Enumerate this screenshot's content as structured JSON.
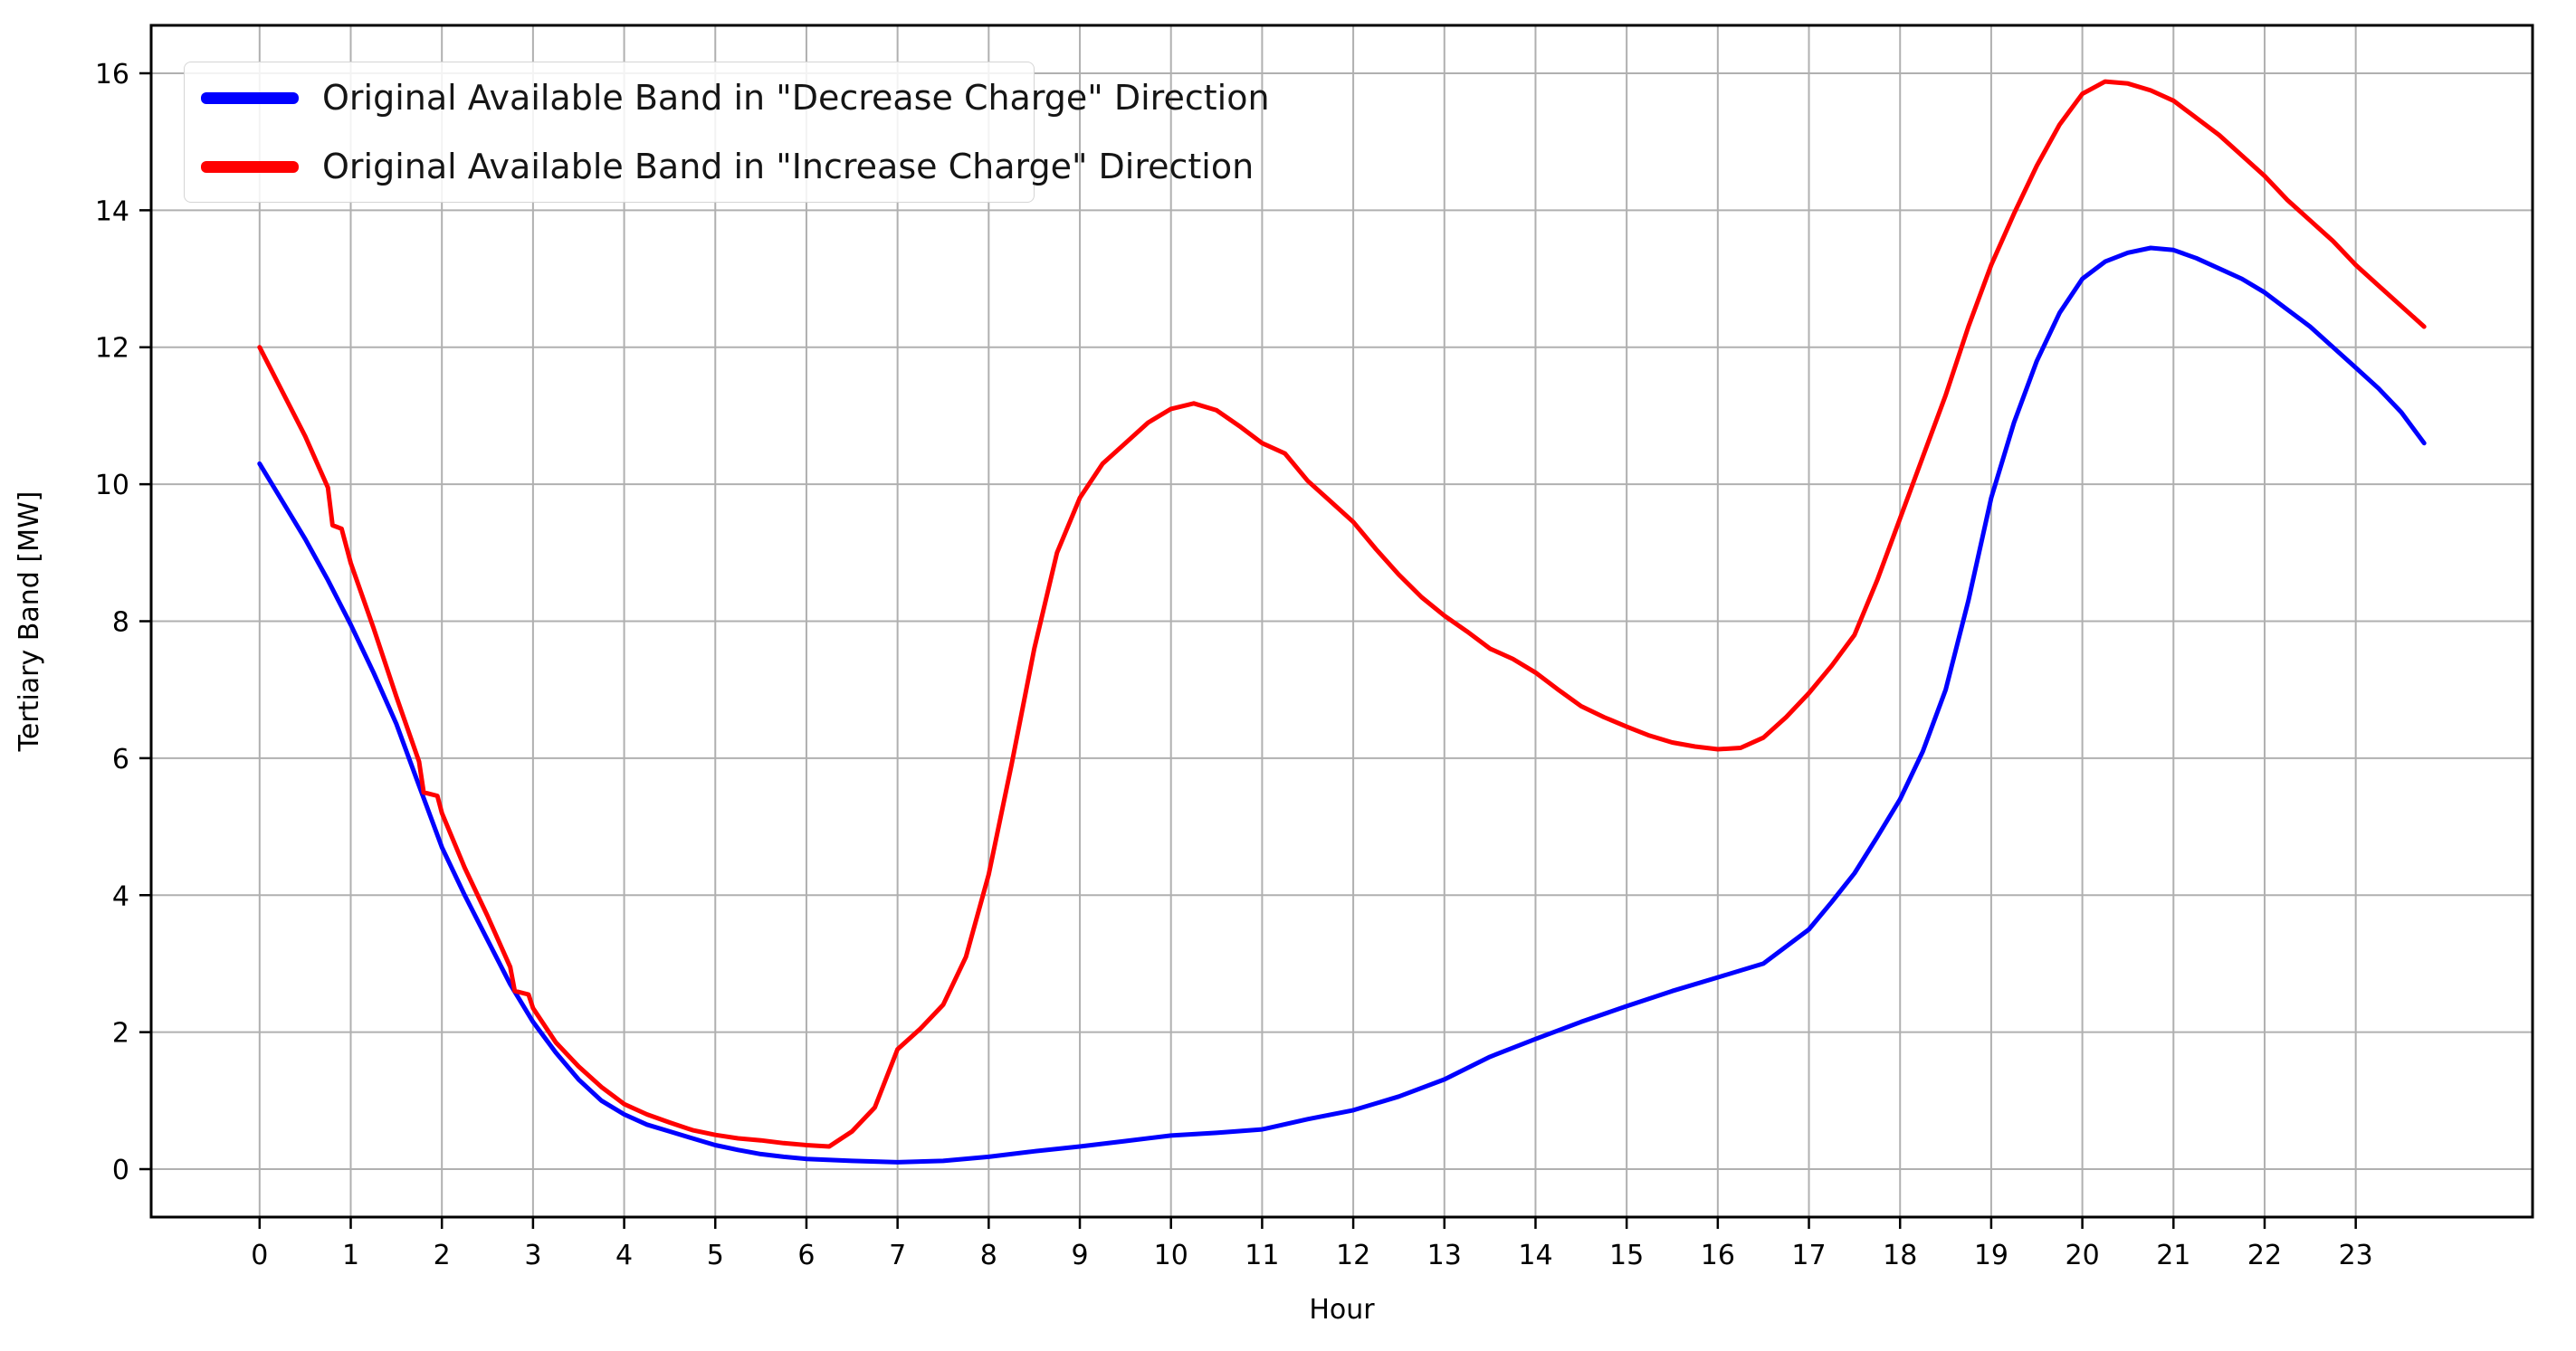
{
  "chart_data": {
    "type": "line",
    "title": "",
    "xlabel": "Hour",
    "ylabel": "Tertiary Band [MW]",
    "xlim": [
      -1.19,
      24.94
    ],
    "ylim": [
      -0.7,
      16.7
    ],
    "xticks": [
      0,
      1,
      2,
      3,
      4,
      5,
      6,
      7,
      8,
      9,
      10,
      11,
      12,
      13,
      14,
      15,
      16,
      17,
      18,
      19,
      20,
      21,
      22,
      23
    ],
    "yticks": [
      0,
      2,
      4,
      6,
      8,
      10,
      12,
      14,
      16
    ],
    "grid": true,
    "legend_position": "upper left",
    "background_color": "#ffffff",
    "grid_color": "#b0b0b0",
    "series": [
      {
        "name": "Original Available Band in \"Decrease Charge\" Direction",
        "color": "#0000ff",
        "points": [
          [
            0,
            10.3
          ],
          [
            0.25,
            9.75
          ],
          [
            0.5,
            9.2
          ],
          [
            0.75,
            8.6
          ],
          [
            1,
            7.95
          ],
          [
            1.25,
            7.25
          ],
          [
            1.5,
            6.5
          ],
          [
            1.75,
            5.6
          ],
          [
            2,
            4.7
          ],
          [
            2.25,
            4.0
          ],
          [
            2.5,
            3.35
          ],
          [
            2.75,
            2.7
          ],
          [
            3,
            2.15
          ],
          [
            3.25,
            1.7
          ],
          [
            3.5,
            1.31
          ],
          [
            3.75,
            1.0
          ],
          [
            4,
            0.8
          ],
          [
            4.25,
            0.65
          ],
          [
            4.5,
            0.55
          ],
          [
            4.75,
            0.45
          ],
          [
            5,
            0.35
          ],
          [
            5.25,
            0.28
          ],
          [
            5.5,
            0.22
          ],
          [
            5.75,
            0.18
          ],
          [
            6,
            0.15
          ],
          [
            6.5,
            0.12
          ],
          [
            7,
            0.1
          ],
          [
            7.5,
            0.12
          ],
          [
            8,
            0.18
          ],
          [
            8.5,
            0.26
          ],
          [
            9,
            0.33
          ],
          [
            9.5,
            0.41
          ],
          [
            10,
            0.49
          ],
          [
            10.5,
            0.53
          ],
          [
            11,
            0.58
          ],
          [
            11.5,
            0.73
          ],
          [
            12,
            0.86
          ],
          [
            12.5,
            1.06
          ],
          [
            13,
            1.31
          ],
          [
            13.5,
            1.64
          ],
          [
            14,
            1.9
          ],
          [
            14.5,
            2.15
          ],
          [
            15,
            2.38
          ],
          [
            15.5,
            2.6
          ],
          [
            16,
            2.8
          ],
          [
            16.5,
            3.0
          ],
          [
            17,
            3.5
          ],
          [
            17.25,
            3.9
          ],
          [
            17.5,
            4.32
          ],
          [
            17.75,
            4.85
          ],
          [
            18,
            5.4
          ],
          [
            18.25,
            6.1
          ],
          [
            18.5,
            7.0
          ],
          [
            18.75,
            8.3
          ],
          [
            19,
            9.8
          ],
          [
            19.25,
            10.9
          ],
          [
            19.5,
            11.8
          ],
          [
            19.75,
            12.5
          ],
          [
            20,
            13.0
          ],
          [
            20.25,
            13.25
          ],
          [
            20.5,
            13.38
          ],
          [
            20.75,
            13.45
          ],
          [
            21,
            13.42
          ],
          [
            21.25,
            13.3
          ],
          [
            21.5,
            13.15
          ],
          [
            21.75,
            13.0
          ],
          [
            22,
            12.8
          ],
          [
            22.25,
            12.55
          ],
          [
            22.5,
            12.3
          ],
          [
            22.75,
            12.0
          ],
          [
            23,
            11.7
          ],
          [
            23.25,
            11.4
          ],
          [
            23.5,
            11.05
          ],
          [
            23.75,
            10.6
          ]
        ]
      },
      {
        "name": "Original Available Band in \"Increase Charge\" Direction",
        "color": "#ff0000",
        "points": [
          [
            0,
            12.0
          ],
          [
            0.25,
            11.35
          ],
          [
            0.5,
            10.7
          ],
          [
            0.75,
            9.95
          ],
          [
            0.8,
            9.4
          ],
          [
            0.9,
            9.35
          ],
          [
            1,
            8.85
          ],
          [
            1.25,
            7.9
          ],
          [
            1.5,
            6.9
          ],
          [
            1.75,
            5.95
          ],
          [
            1.8,
            5.5
          ],
          [
            1.95,
            5.45
          ],
          [
            2,
            5.2
          ],
          [
            2.25,
            4.4
          ],
          [
            2.5,
            3.7
          ],
          [
            2.75,
            2.95
          ],
          [
            2.8,
            2.6
          ],
          [
            2.95,
            2.55
          ],
          [
            3,
            2.35
          ],
          [
            3.25,
            1.85
          ],
          [
            3.5,
            1.5
          ],
          [
            3.75,
            1.2
          ],
          [
            3.9,
            1.05
          ],
          [
            4,
            0.95
          ],
          [
            4.25,
            0.8
          ],
          [
            4.5,
            0.68
          ],
          [
            4.75,
            0.57
          ],
          [
            5,
            0.5
          ],
          [
            5.25,
            0.45
          ],
          [
            5.5,
            0.42
          ],
          [
            5.75,
            0.38
          ],
          [
            6,
            0.35
          ],
          [
            6.25,
            0.33
          ],
          [
            6.5,
            0.55
          ],
          [
            6.75,
            0.9
          ],
          [
            7,
            1.75
          ],
          [
            7.25,
            2.05
          ],
          [
            7.5,
            2.4
          ],
          [
            7.75,
            3.1
          ],
          [
            8,
            4.3
          ],
          [
            8.25,
            5.9
          ],
          [
            8.5,
            7.6
          ],
          [
            8.75,
            9.0
          ],
          [
            9,
            9.8
          ],
          [
            9.25,
            10.3
          ],
          [
            9.5,
            10.6
          ],
          [
            9.75,
            10.9
          ],
          [
            10,
            11.1
          ],
          [
            10.25,
            11.18
          ],
          [
            10.5,
            11.08
          ],
          [
            10.75,
            10.85
          ],
          [
            11,
            10.6
          ],
          [
            11.25,
            10.45
          ],
          [
            11.5,
            10.05
          ],
          [
            11.75,
            9.75
          ],
          [
            12,
            9.45
          ],
          [
            12.25,
            9.05
          ],
          [
            12.5,
            8.68
          ],
          [
            12.75,
            8.35
          ],
          [
            13,
            8.08
          ],
          [
            13.25,
            7.85
          ],
          [
            13.5,
            7.6
          ],
          [
            13.75,
            7.45
          ],
          [
            14,
            7.25
          ],
          [
            14.25,
            7.0
          ],
          [
            14.5,
            6.76
          ],
          [
            14.75,
            6.6
          ],
          [
            15,
            6.46
          ],
          [
            15.25,
            6.33
          ],
          [
            15.5,
            6.23
          ],
          [
            15.75,
            6.17
          ],
          [
            16,
            6.13
          ],
          [
            16.25,
            6.15
          ],
          [
            16.5,
            6.3
          ],
          [
            16.75,
            6.6
          ],
          [
            17,
            6.95
          ],
          [
            17.25,
            7.35
          ],
          [
            17.5,
            7.8
          ],
          [
            17.75,
            8.6
          ],
          [
            18,
            9.5
          ],
          [
            18.25,
            10.4
          ],
          [
            18.5,
            11.3
          ],
          [
            18.75,
            12.3
          ],
          [
            19,
            13.2
          ],
          [
            19.25,
            13.95
          ],
          [
            19.5,
            14.65
          ],
          [
            19.75,
            15.25
          ],
          [
            20,
            15.7
          ],
          [
            20.25,
            15.88
          ],
          [
            20.5,
            15.85
          ],
          [
            20.75,
            15.75
          ],
          [
            21,
            15.6
          ],
          [
            21.25,
            15.35
          ],
          [
            21.5,
            15.1
          ],
          [
            21.75,
            14.8
          ],
          [
            22,
            14.5
          ],
          [
            22.25,
            14.15
          ],
          [
            22.5,
            13.85
          ],
          [
            22.75,
            13.55
          ],
          [
            23,
            13.2
          ],
          [
            23.25,
            12.9
          ],
          [
            23.5,
            12.6
          ],
          [
            23.75,
            12.3
          ]
        ]
      }
    ]
  }
}
